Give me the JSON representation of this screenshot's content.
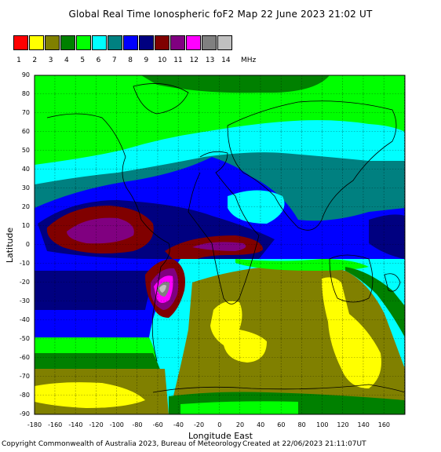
{
  "title": "Global Real Time Ionospheric foF2 Map  22 June 2023 21:02 UT",
  "legend": {
    "colors": [
      "#ff0000",
      "#ffff00",
      "#808000",
      "#008000",
      "#00ff00",
      "#00ffff",
      "#008080",
      "#0000ff",
      "#000080",
      "#800000",
      "#800080",
      "#ff00ff",
      "#808080",
      "#c0c0c0"
    ],
    "labels": [
      "1",
      "2",
      "3",
      "4",
      "5",
      "6",
      "7",
      "8",
      "9",
      "10",
      "11",
      "12",
      "13",
      "14"
    ],
    "unit": "MHz"
  },
  "axes": {
    "ylabel": "Latitude",
    "xlabel": "Longitude East",
    "yticks": [
      "90",
      "80",
      "70",
      "60",
      "50",
      "40",
      "30",
      "20",
      "10",
      "0",
      "-10",
      "-20",
      "-30",
      "-40",
      "-50",
      "-60",
      "-70",
      "-80",
      "-90"
    ],
    "xticks": [
      "-180",
      "-160",
      "-140",
      "-120",
      "-100",
      "-80",
      "-60",
      "-40",
      "-20",
      "0",
      "20",
      "40",
      "60",
      "80",
      "100",
      "120",
      "140",
      "160"
    ]
  },
  "footer": {
    "copyright": "Copyright Commonwealth of Australia 2023, Bureau of Meteorology",
    "created": "Created at 22/06/2023 21:11:07UT"
  }
}
